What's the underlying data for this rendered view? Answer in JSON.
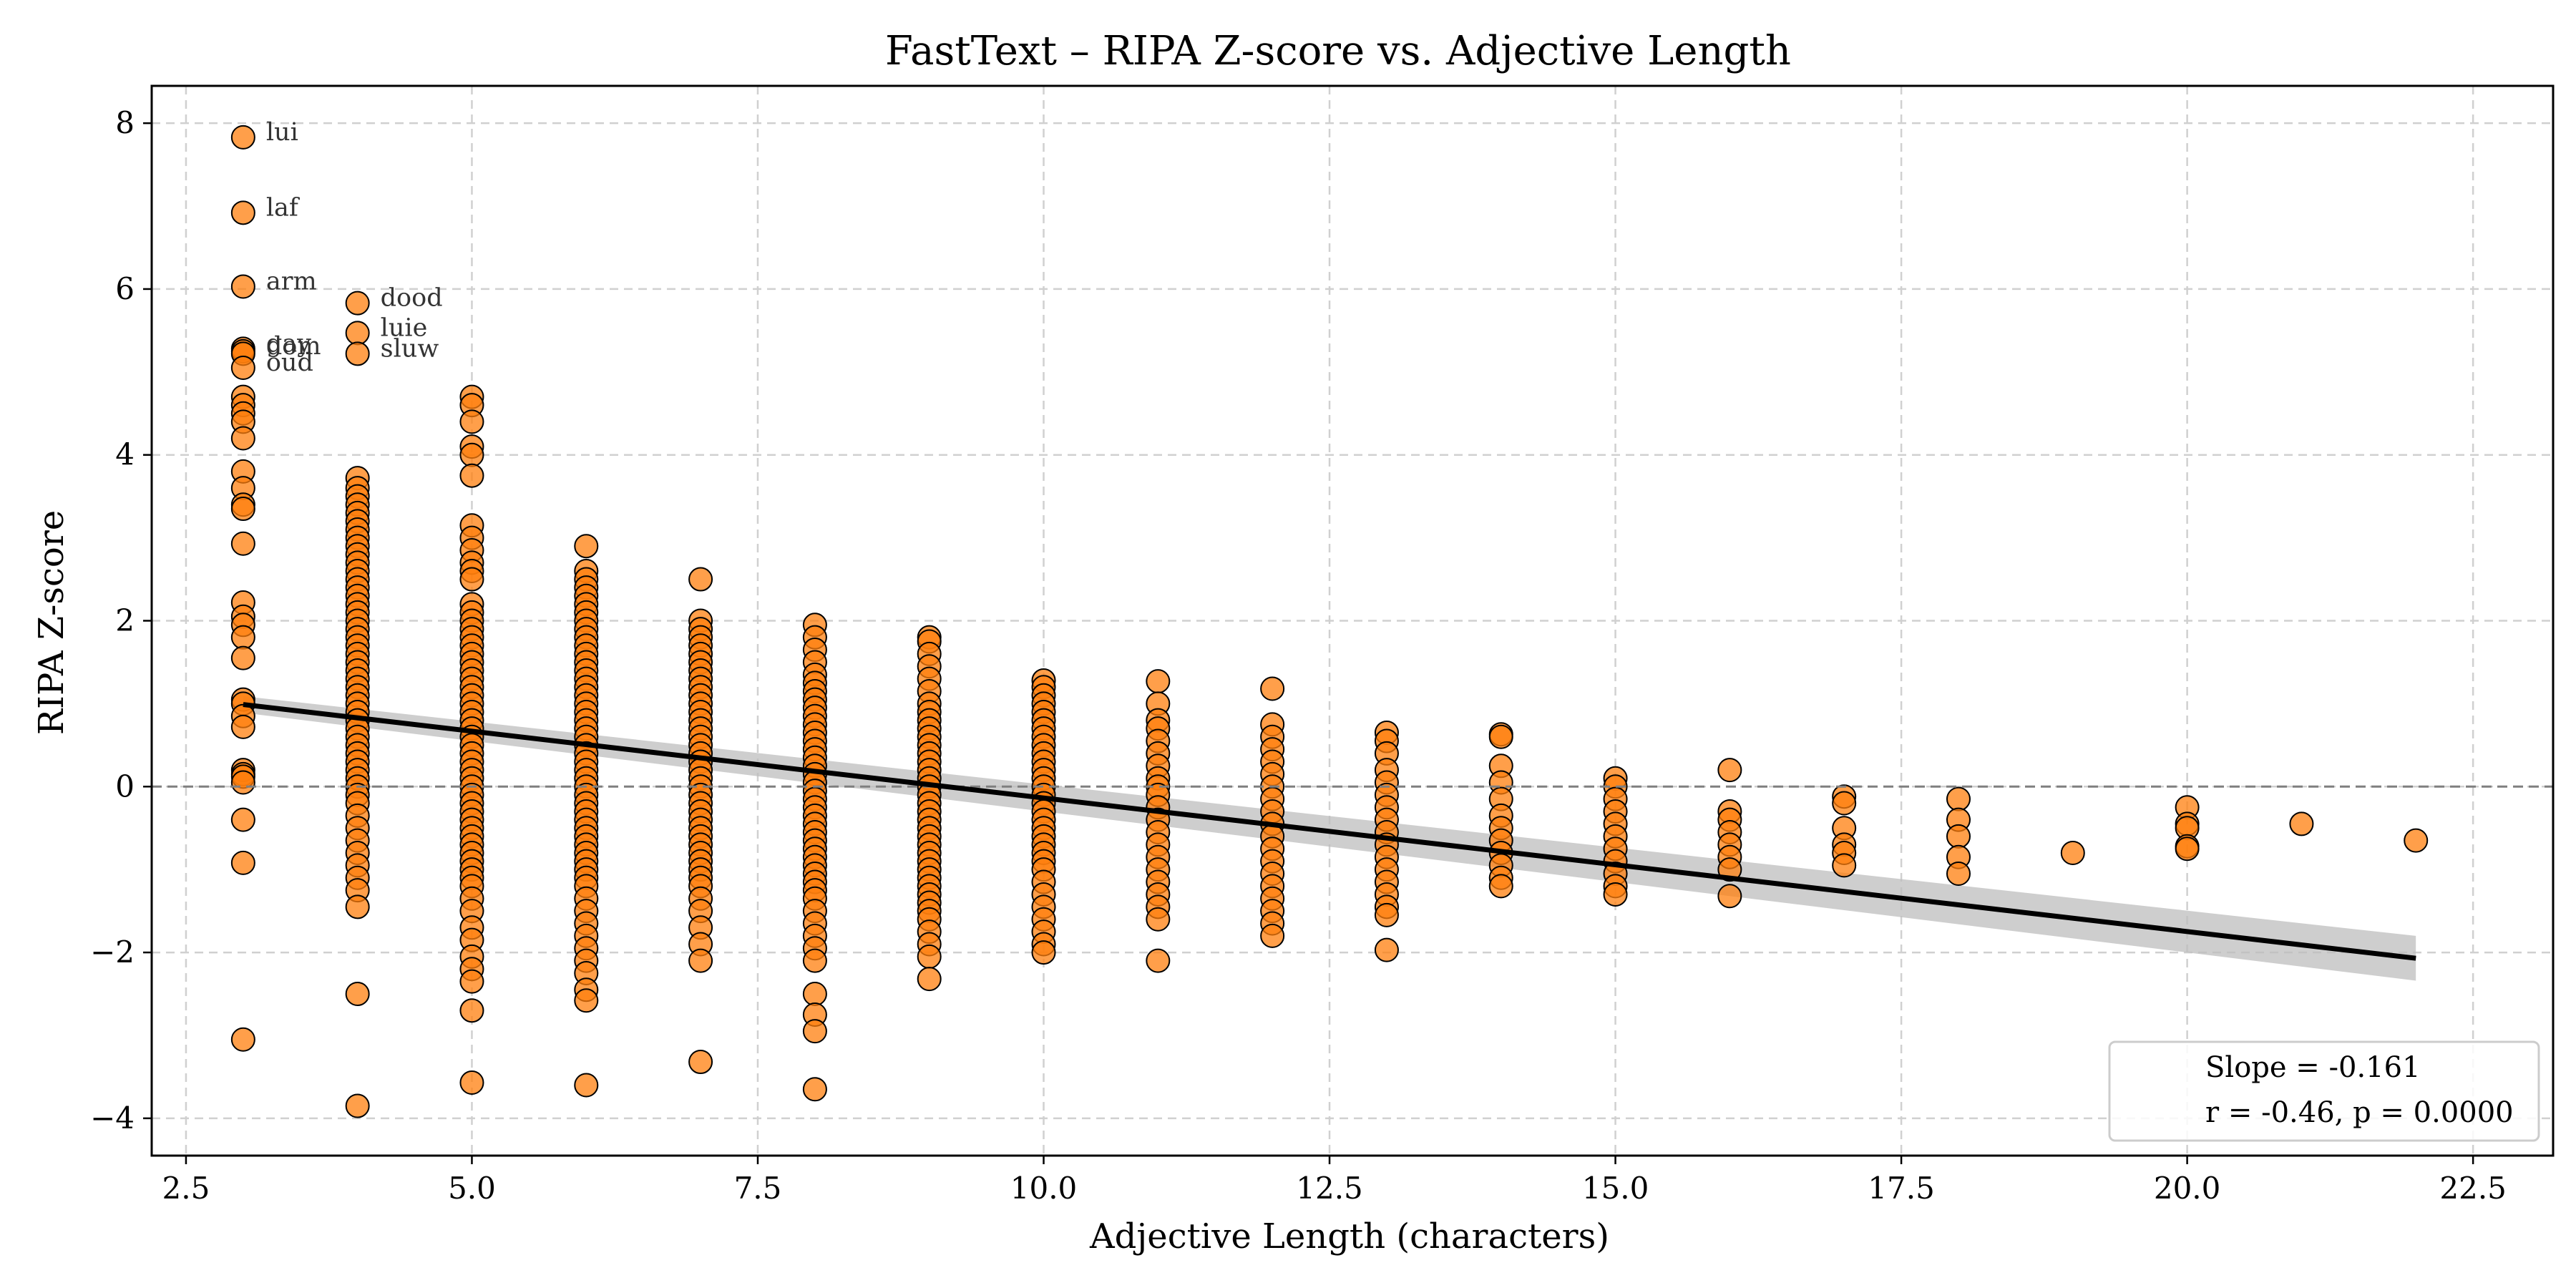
{
  "chart_data": {
    "type": "scatter",
    "title": "FastText – RIPA Z-score vs. Adjective Length",
    "xlabel": "Adjective Length (characters)",
    "ylabel": "RIPA Z-score",
    "xlim": [
      2.2,
      23.2
    ],
    "ylim": [
      -4.45,
      8.45
    ],
    "xticks": [
      2.5,
      5.0,
      7.5,
      10.0,
      12.5,
      15.0,
      17.5,
      20.0,
      22.5
    ],
    "xtick_labels": [
      "2.5",
      "5.0",
      "7.5",
      "10.0",
      "12.5",
      "15.0",
      "17.5",
      "20.0",
      "22.5"
    ],
    "yticks": [
      -4,
      -2,
      0,
      2,
      4,
      6,
      8
    ],
    "ytick_labels": [
      "−4",
      "−2",
      "0",
      "2",
      "4",
      "6",
      "8"
    ],
    "grid": true,
    "zero_line": true,
    "point_color": "#ff7f0e",
    "point_edge_color": "#000000",
    "regression": {
      "slope": -0.161,
      "x_range": [
        3,
        22
      ],
      "y_start": 0.99,
      "y_end": -2.07,
      "ci_width": [
        0.1,
        0.27
      ],
      "color": "#000000",
      "ci_color": "#bdbdbd"
    },
    "points": [
      {
        "x": 3,
        "y": [
          7.83,
          6.92,
          6.03,
          5.28,
          5.25,
          5.22,
          5.05,
          4.7,
          4.6,
          4.5,
          4.4,
          4.2,
          3.8,
          3.6,
          3.4,
          3.35,
          2.93,
          2.22,
          2.05,
          1.95,
          1.8,
          1.55,
          1.05,
          1.0,
          0.85,
          0.72,
          0.2,
          0.15,
          0.12,
          0.05,
          -0.4,
          -0.92,
          -3.05
        ]
      },
      {
        "x": 4,
        "y": [
          5.83,
          5.47,
          5.22,
          3.72,
          3.6,
          3.5,
          3.4,
          3.3,
          3.2,
          3.1,
          3.0,
          2.9,
          2.8,
          2.7,
          2.6,
          2.5,
          2.4,
          2.3,
          2.2,
          2.1,
          2.0,
          1.9,
          1.8,
          1.7,
          1.6,
          1.5,
          1.4,
          1.3,
          1.2,
          1.1,
          1.0,
          0.9,
          0.8,
          0.7,
          0.6,
          0.5,
          0.4,
          0.3,
          0.2,
          0.1,
          0.0,
          -0.1,
          -0.2,
          -0.35,
          -0.5,
          -0.65,
          -0.8,
          -0.95,
          -1.1,
          -1.25,
          -1.45,
          -2.5,
          -3.85
        ]
      },
      {
        "x": 5,
        "y": [
          4.7,
          4.6,
          4.4,
          4.1,
          4.0,
          3.75,
          3.15,
          3.0,
          2.85,
          2.7,
          2.6,
          2.5,
          2.2,
          2.1,
          2.0,
          1.9,
          1.8,
          1.7,
          1.6,
          1.5,
          1.4,
          1.3,
          1.2,
          1.1,
          1.0,
          0.9,
          0.8,
          0.7,
          0.6,
          0.5,
          0.4,
          0.3,
          0.2,
          0.1,
          0.0,
          -0.1,
          -0.2,
          -0.3,
          -0.4,
          -0.5,
          -0.6,
          -0.7,
          -0.8,
          -0.9,
          -1.0,
          -1.1,
          -1.2,
          -1.35,
          -1.5,
          -1.7,
          -1.85,
          -2.05,
          -2.2,
          -2.35,
          -2.7,
          -3.57
        ]
      },
      {
        "x": 6,
        "y": [
          2.9,
          2.6,
          2.5,
          2.4,
          2.3,
          2.2,
          2.1,
          2.0,
          1.9,
          1.8,
          1.7,
          1.6,
          1.5,
          1.4,
          1.3,
          1.2,
          1.1,
          1.0,
          0.9,
          0.8,
          0.7,
          0.6,
          0.5,
          0.4,
          0.3,
          0.2,
          0.1,
          0.0,
          -0.1,
          -0.2,
          -0.3,
          -0.4,
          -0.5,
          -0.6,
          -0.7,
          -0.8,
          -0.9,
          -1.0,
          -1.1,
          -1.2,
          -1.35,
          -1.5,
          -1.65,
          -1.8,
          -1.95,
          -2.1,
          -2.25,
          -2.45,
          -2.58,
          -3.6
        ]
      },
      {
        "x": 7,
        "y": [
          2.5,
          2.0,
          1.9,
          1.8,
          1.7,
          1.6,
          1.5,
          1.4,
          1.3,
          1.2,
          1.1,
          1.0,
          0.9,
          0.8,
          0.7,
          0.6,
          0.5,
          0.4,
          0.3,
          0.2,
          0.1,
          0.0,
          -0.1,
          -0.2,
          -0.3,
          -0.4,
          -0.5,
          -0.6,
          -0.7,
          -0.8,
          -0.9,
          -1.0,
          -1.1,
          -1.2,
          -1.35,
          -1.5,
          -1.7,
          -1.9,
          -2.1,
          -3.32
        ]
      },
      {
        "x": 8,
        "y": [
          1.95,
          1.8,
          1.65,
          1.5,
          1.35,
          1.25,
          1.15,
          1.05,
          0.95,
          0.85,
          0.75,
          0.65,
          0.55,
          0.45,
          0.35,
          0.25,
          0.15,
          0.05,
          -0.05,
          -0.15,
          -0.25,
          -0.35,
          -0.45,
          -0.55,
          -0.65,
          -0.75,
          -0.85,
          -0.95,
          -1.05,
          -1.15,
          -1.25,
          -1.35,
          -1.5,
          -1.65,
          -1.8,
          -1.95,
          -2.1,
          -2.5,
          -2.75,
          -2.95,
          -3.65
        ]
      },
      {
        "x": 9,
        "y": [
          1.8,
          1.75,
          1.6,
          1.45,
          1.3,
          1.15,
          1.0,
          0.9,
          0.8,
          0.7,
          0.6,
          0.5,
          0.4,
          0.3,
          0.2,
          0.1,
          0.0,
          -0.1,
          -0.2,
          -0.3,
          -0.4,
          -0.5,
          -0.6,
          -0.7,
          -0.8,
          -0.9,
          -1.0,
          -1.1,
          -1.2,
          -1.3,
          -1.4,
          -1.5,
          -1.6,
          -1.75,
          -1.9,
          -2.05,
          -2.32
        ]
      },
      {
        "x": 10,
        "y": [
          1.28,
          1.2,
          1.1,
          1.0,
          0.9,
          0.8,
          0.7,
          0.6,
          0.5,
          0.4,
          0.3,
          0.2,
          0.1,
          0.0,
          -0.1,
          -0.2,
          -0.3,
          -0.4,
          -0.5,
          -0.6,
          -0.7,
          -0.8,
          -0.9,
          -1.0,
          -1.15,
          -1.3,
          -1.45,
          -1.6,
          -1.75,
          -1.9,
          -2.0
        ]
      },
      {
        "x": 11,
        "y": [
          1.27,
          1.0,
          0.8,
          0.7,
          0.55,
          0.4,
          0.25,
          0.1,
          0.0,
          -0.1,
          -0.25,
          -0.4,
          -0.55,
          -0.7,
          -0.85,
          -1.0,
          -1.15,
          -1.3,
          -1.45,
          -1.6,
          -2.1
        ]
      },
      {
        "x": 12,
        "y": [
          1.18,
          0.75,
          0.6,
          0.45,
          0.3,
          0.15,
          0.0,
          -0.15,
          -0.3,
          -0.45,
          -0.6,
          -0.75,
          -0.9,
          -1.05,
          -1.2,
          -1.35,
          -1.5,
          -1.65,
          -1.8
        ]
      },
      {
        "x": 13,
        "y": [
          0.65,
          0.55,
          0.4,
          0.2,
          0.05,
          -0.1,
          -0.25,
          -0.4,
          -0.55,
          -0.7,
          -0.85,
          -1.0,
          -1.15,
          -1.3,
          -1.45,
          -1.55,
          -1.97
        ]
      },
      {
        "x": 14,
        "y": [
          0.63,
          0.6,
          0.25,
          0.05,
          -0.15,
          -0.35,
          -0.5,
          -0.65,
          -0.8,
          -0.95,
          -1.1,
          -1.2
        ]
      },
      {
        "x": 15,
        "y": [
          0.1,
          0.0,
          -0.15,
          -0.3,
          -0.45,
          -0.6,
          -0.75,
          -0.9,
          -1.05,
          -1.2,
          -1.3
        ]
      },
      {
        "x": 16,
        "y": [
          0.2,
          -0.3,
          -0.4,
          -0.55,
          -0.7,
          -0.85,
          -1.0,
          -1.32
        ]
      },
      {
        "x": 17,
        "y": [
          -0.12,
          -0.2,
          -0.5,
          -0.7,
          -0.8,
          -0.95
        ]
      },
      {
        "x": 18,
        "y": [
          -0.15,
          -0.4,
          -0.6,
          -0.85,
          -1.05
        ]
      },
      {
        "x": 19,
        "y": [
          -0.8
        ]
      },
      {
        "x": 20,
        "y": [
          -0.25,
          -0.45,
          -0.5,
          -0.72,
          -0.75
        ]
      },
      {
        "x": 21,
        "y": [
          -0.45
        ]
      },
      {
        "x": 22,
        "y": [
          -0.65
        ]
      }
    ],
    "annotations": [
      {
        "text": "lui",
        "x": 3,
        "y": 7.83
      },
      {
        "text": "laf",
        "x": 3,
        "y": 6.92
      },
      {
        "text": "arm",
        "x": 3,
        "y": 6.03
      },
      {
        "text": "gay",
        "x": 3,
        "y": 5.28
      },
      {
        "text": "dom",
        "x": 3,
        "y": 5.25
      },
      {
        "text": "oud",
        "x": 3,
        "y": 5.05
      },
      {
        "text": "dood",
        "x": 4,
        "y": 5.83
      },
      {
        "text": "luie",
        "x": 4,
        "y": 5.47
      },
      {
        "text": "sluw",
        "x": 4,
        "y": 5.22
      }
    ],
    "legend": {
      "position": "lower-right",
      "entries": [
        "Slope = -0.161",
        "r = -0.46, p = 0.0000"
      ]
    }
  }
}
